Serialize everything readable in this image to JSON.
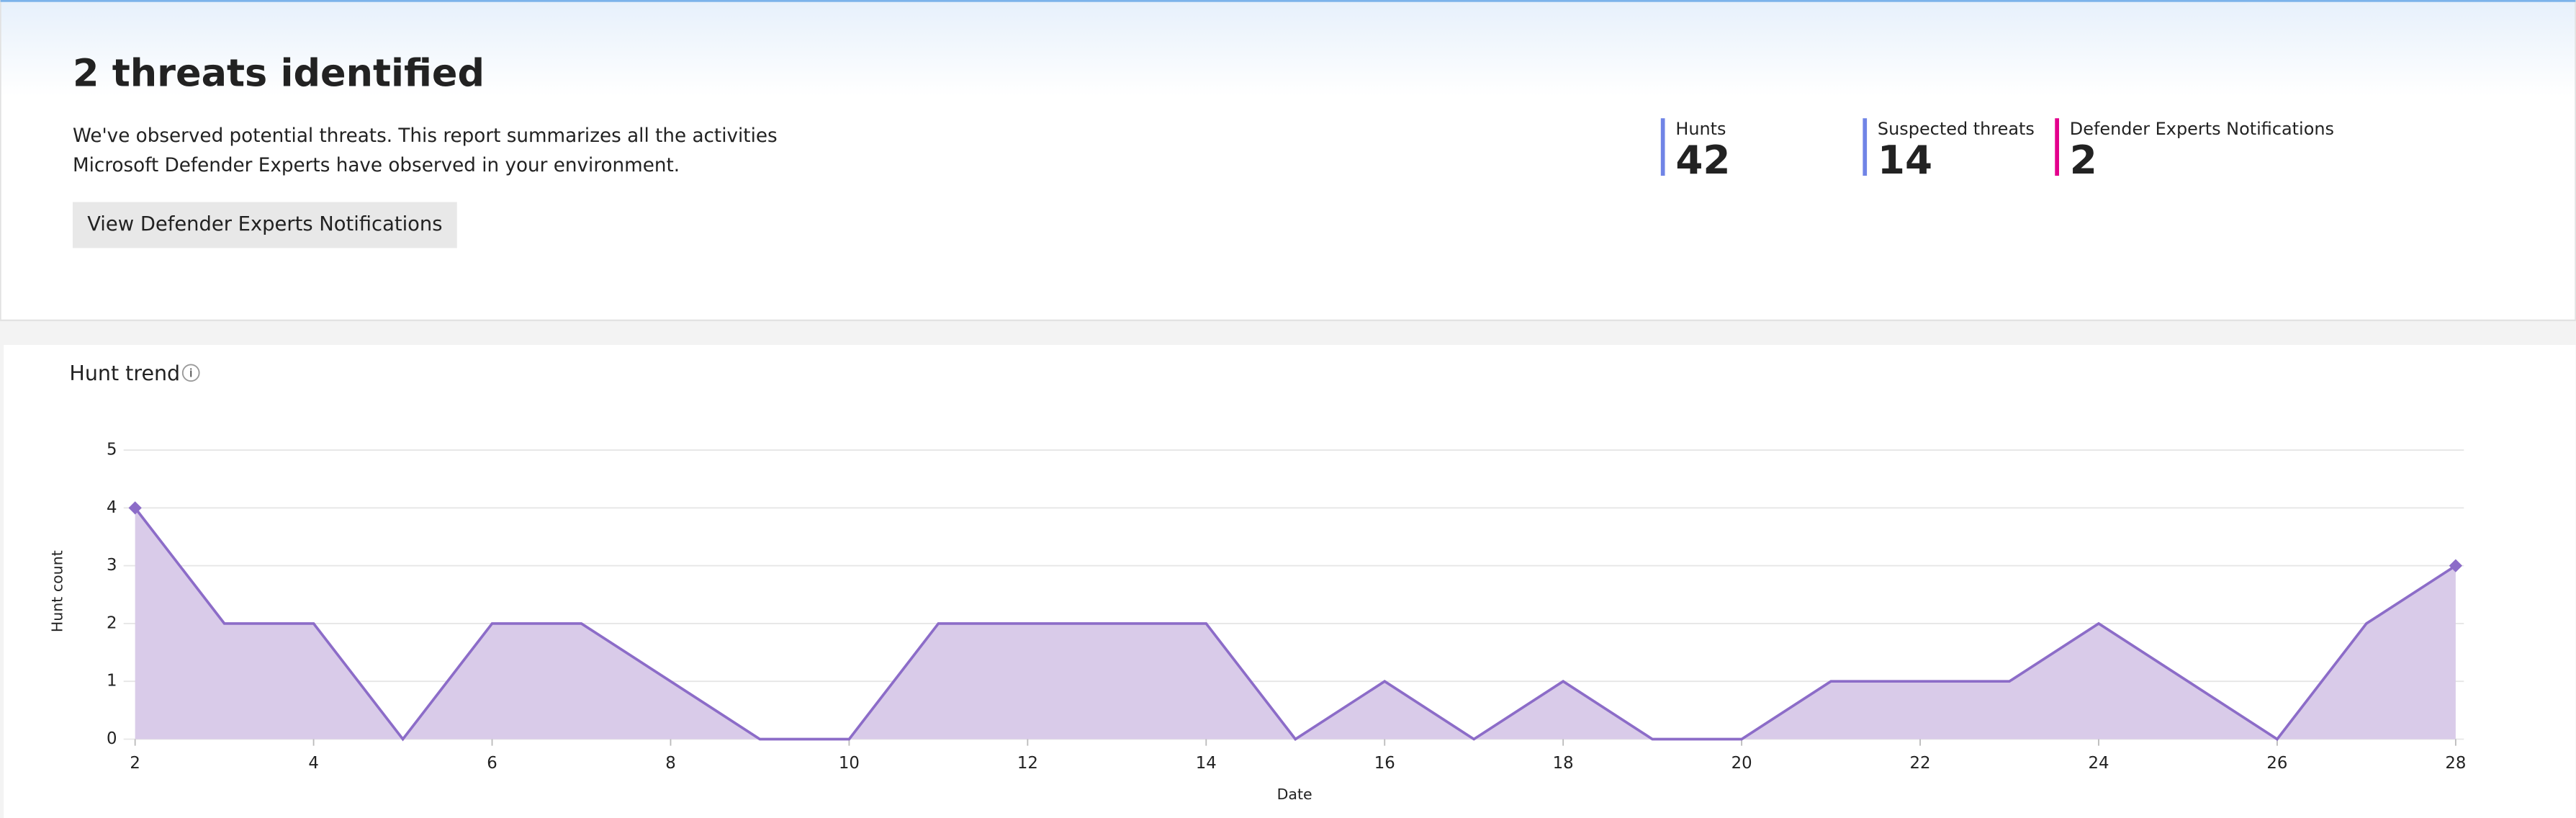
{
  "header": {
    "title": "2 threats identified",
    "description": [
      "We've observed potential threats. This report summarizes all the activities",
      "Microsoft Defender Experts have observed in your environment."
    ],
    "button": "View Defender Experts Notifications"
  },
  "stats": [
    {
      "label": "Hunts",
      "value": 42,
      "color": "#7084e6"
    },
    {
      "label": "Suspected threats",
      "value": 14,
      "color": "#7084e6"
    },
    {
      "label": "Defender Experts Notifications",
      "value": 2,
      "color": "#e3008c"
    }
  ],
  "chart_data": {
    "type": "area",
    "title": "Hunt trend",
    "xlabel": "Date",
    "ylabel": "Hunt count",
    "x": [
      2,
      3,
      4,
      5,
      6,
      7,
      8,
      9,
      10,
      11,
      12,
      13,
      14,
      15,
      16,
      17,
      18,
      19,
      20,
      21,
      22,
      23,
      24,
      25,
      26,
      27,
      28
    ],
    "values": [
      4,
      2,
      2,
      0,
      2,
      2,
      1,
      0,
      0,
      2,
      2,
      2,
      2,
      0,
      1,
      0,
      1,
      0,
      0,
      1,
      1,
      1,
      2,
      1,
      0,
      2,
      3
    ],
    "xlim": [
      2,
      28
    ],
    "ylim": [
      0,
      5
    ],
    "xticks": [
      2,
      4,
      6,
      8,
      10,
      12,
      14,
      16,
      18,
      20,
      22,
      24,
      26,
      28
    ],
    "yticks": [
      0,
      1,
      2,
      3,
      4,
      5
    ],
    "color": "#8c6cc8",
    "fill": "#d9cbe9",
    "grid": true
  }
}
